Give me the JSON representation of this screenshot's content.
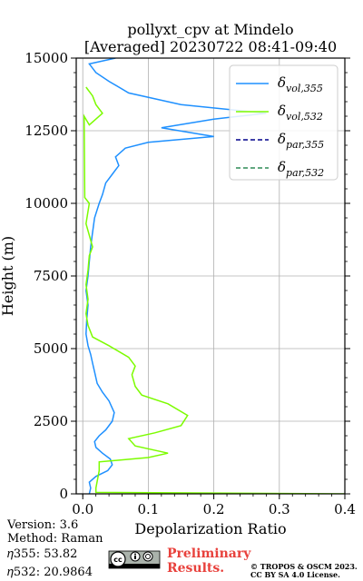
{
  "chart_data": {
    "type": "line",
    "title": "pollyxt_cpv at Mindelo",
    "subtitle": "[Averaged] 20230722 08:41-09:40",
    "xlabel": "Depolarization Ratio",
    "ylabel": "Height (m)",
    "xlim": [
      -0.01,
      0.4
    ],
    "ylim": [
      0,
      15000
    ],
    "x_ticks": [
      0.0,
      0.1,
      0.2,
      0.3,
      0.4
    ],
    "x_tick_labels": [
      "0.0",
      "0.1",
      "0.2",
      "0.3",
      "0.4"
    ],
    "y_ticks": [
      0,
      2500,
      5000,
      7500,
      10000,
      12500,
      15000
    ],
    "y_tick_labels": [
      "0",
      "2500",
      "5000",
      "7500",
      "10000",
      "12500",
      "15000"
    ],
    "grid": true,
    "legend_position": "top-right",
    "series": [
      {
        "name": "δvol,355",
        "legend_main": "δ",
        "legend_sub": "vol,355",
        "color": "#1e90ff",
        "dash": "solid",
        "points": [
          [
            0.01,
            0
          ],
          [
            0.012,
            200
          ],
          [
            0.01,
            400
          ],
          [
            0.02,
            600
          ],
          [
            0.038,
            800
          ],
          [
            0.045,
            1000
          ],
          [
            0.042,
            1200
          ],
          [
            0.03,
            1400
          ],
          [
            0.02,
            1600
          ],
          [
            0.018,
            1800
          ],
          [
            0.025,
            2000
          ],
          [
            0.035,
            2200
          ],
          [
            0.045,
            2500
          ],
          [
            0.048,
            2800
          ],
          [
            0.04,
            3200
          ],
          [
            0.03,
            3500
          ],
          [
            0.022,
            3800
          ],
          [
            0.018,
            4200
          ],
          [
            0.015,
            4500
          ],
          [
            0.012,
            4800
          ],
          [
            0.008,
            5100
          ],
          [
            0.005,
            5500
          ],
          [
            0.006,
            6000
          ],
          [
            0.008,
            6500
          ],
          [
            0.005,
            7000
          ],
          [
            0.008,
            7500
          ],
          [
            0.01,
            8000
          ],
          [
            0.012,
            8500
          ],
          [
            0.015,
            9000
          ],
          [
            0.018,
            9500
          ],
          [
            0.025,
            10000
          ],
          [
            0.03,
            10300
          ],
          [
            0.035,
            10700
          ],
          [
            0.045,
            11000
          ],
          [
            0.055,
            11300
          ],
          [
            0.05,
            11600
          ],
          [
            0.065,
            11900
          ],
          [
            0.1,
            12100
          ],
          [
            0.2,
            12300
          ],
          [
            0.12,
            12600
          ],
          [
            0.2,
            12900
          ],
          [
            0.28,
            13100
          ],
          [
            0.15,
            13400
          ],
          [
            0.07,
            13800
          ],
          [
            0.04,
            14200
          ],
          [
            0.02,
            14500
          ],
          [
            0.01,
            14800
          ],
          [
            0.05,
            15000
          ]
        ]
      },
      {
        "name": "δvol,532",
        "legend_main": "δ",
        "legend_sub": "vol,532",
        "color": "#7cfc00",
        "dash": "solid",
        "points": [
          [
            0.4,
            0
          ],
          [
            0.02,
            50
          ],
          [
            0.02,
            200
          ],
          [
            0.025,
            800
          ],
          [
            0.025,
            1100
          ],
          [
            0.1,
            1250
          ],
          [
            0.13,
            1400
          ],
          [
            0.08,
            1650
          ],
          [
            0.07,
            1900
          ],
          [
            0.11,
            2100
          ],
          [
            0.15,
            2350
          ],
          [
            0.16,
            2700
          ],
          [
            0.13,
            3100
          ],
          [
            0.09,
            3400
          ],
          [
            0.08,
            3700
          ],
          [
            0.075,
            4100
          ],
          [
            0.08,
            4400
          ],
          [
            0.07,
            4700
          ],
          [
            0.04,
            5100
          ],
          [
            0.015,
            5400
          ],
          [
            0.008,
            5800
          ],
          [
            0.005,
            6200
          ],
          [
            0.008,
            6700
          ],
          [
            0.005,
            7200
          ],
          [
            0.008,
            7700
          ],
          [
            0.01,
            8200
          ],
          [
            0.015,
            8500
          ],
          [
            0.01,
            8900
          ],
          [
            0.005,
            9300
          ],
          [
            0.01,
            10000
          ],
          [
            0.003,
            10200
          ],
          [
            0.002,
            13000
          ],
          [
            0.01,
            12700
          ],
          [
            0.03,
            13100
          ],
          [
            0.02,
            13400
          ],
          [
            0.015,
            13700
          ],
          [
            0.005,
            14000
          ]
        ]
      },
      {
        "name": "δpar,355",
        "legend_main": "δ",
        "legend_sub": "par,355",
        "color": "#00008b",
        "dash": "dashed",
        "points": []
      },
      {
        "name": "δpar,532",
        "legend_main": "δ",
        "legend_sub": "par,532",
        "color": "#2e8b57",
        "dash": "dashed",
        "points": []
      }
    ]
  },
  "info": {
    "version": "Version: 3.6",
    "method": "Method: Raman",
    "eta355": "𝜂355:  53.82",
    "eta532": "𝜂532: 20.9864"
  },
  "badge": {
    "license_icon": "cc-by-sa-icon",
    "preliminary_line1": "Preliminary",
    "preliminary_line2": "Results.",
    "copyright_line1": "© TROPOS & OSCM 2023.",
    "copyright_line2": "CC BY SA 4.0 License."
  }
}
